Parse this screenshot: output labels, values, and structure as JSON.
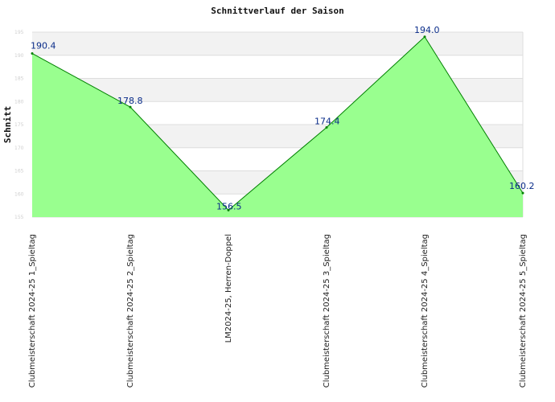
{
  "chart_data": {
    "type": "area",
    "title": "Schnittverlauf der Saison",
    "ylabel": "Schnitt",
    "xlabel": "",
    "categories": [
      "Clubmeisterschaft 2024-25   1_Spieltag",
      "Clubmeisterschaft 2024-25   2_Spieltag",
      "LM2024-25, Herren-Doppel",
      "Clubmeisterschaft 2024-25   3_Spieltag",
      "Clubmeisterschaft 2024-25   4_Spieltag",
      "Clubmeisterschaft 2024-25   5_Spieltag"
    ],
    "values": [
      190.4,
      178.8,
      156.5,
      174.4,
      194.0,
      160.2
    ],
    "data_labels": [
      "190.4",
      "178.8",
      "156.5",
      "174.4",
      "194.0",
      "160.2"
    ],
    "ylim": [
      155,
      195
    ],
    "yticks": [
      155,
      160,
      165,
      170,
      175,
      180,
      185,
      190,
      195
    ],
    "ytick_labels": [
      "155",
      "160",
      "165",
      "170",
      "175",
      "180",
      "185",
      "190",
      "195"
    ],
    "grid": true,
    "colors": {
      "fill": "#99ff8f",
      "line": "#008000",
      "band": "#f2f2f2",
      "gridline": "#dddddd",
      "label": "#0b2d8a"
    }
  }
}
